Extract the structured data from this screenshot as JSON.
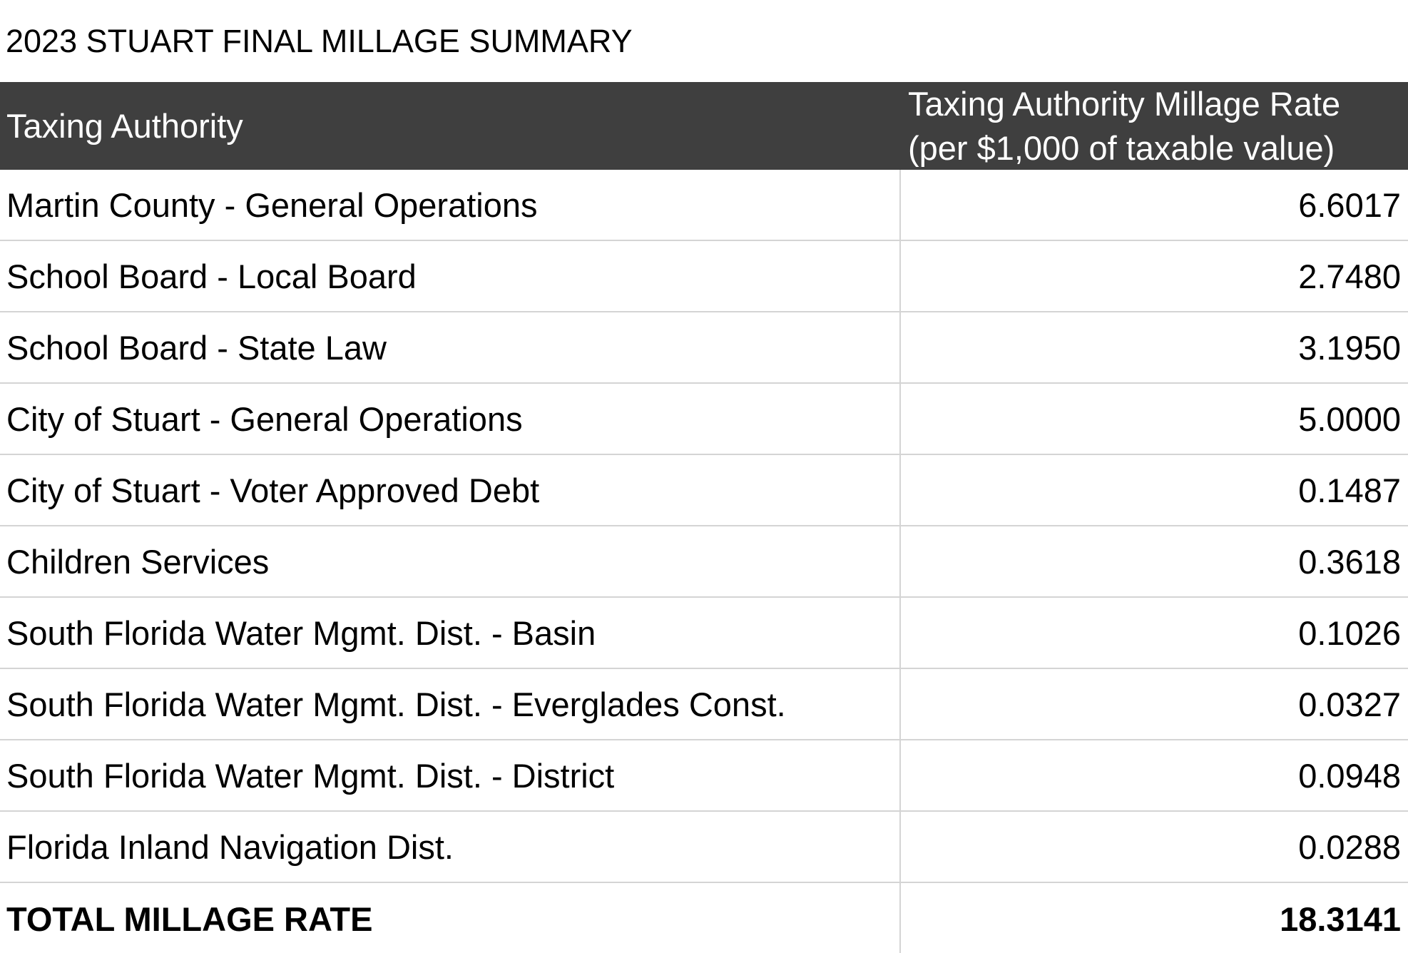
{
  "title": "2023 STUART FINAL MILLAGE SUMMARY",
  "header": {
    "authority": "Taxing Authority",
    "rate_line1": "Taxing Authority Millage Rate",
    "rate_line2": "(per $1,000 of taxable value)"
  },
  "rows": [
    {
      "name": "Martin County - General Operations",
      "rate": "6.6017"
    },
    {
      "name": "School Board - Local Board",
      "rate": "2.7480"
    },
    {
      "name": "School Board - State Law",
      "rate": "3.1950"
    },
    {
      "name": "City of Stuart - General Operations",
      "rate": "5.0000"
    },
    {
      "name": "City of Stuart - Voter Approved Debt",
      "rate": "0.1487"
    },
    {
      "name": "Children Services",
      "rate": "0.3618"
    },
    {
      "name": "South Florida Water Mgmt. Dist. - Basin",
      "rate": "0.1026"
    },
    {
      "name": "South Florida Water Mgmt. Dist. - Everglades Const.",
      "rate": "0.0327"
    },
    {
      "name": "South Florida Water Mgmt. Dist. - District",
      "rate": "0.0948"
    },
    {
      "name": "Florida Inland Navigation Dist.",
      "rate": "0.0288"
    }
  ],
  "total": {
    "label": "TOTAL MILLAGE RATE",
    "rate": "18.3141"
  },
  "colors": {
    "header_bg": "#3f3f3f",
    "header_text": "#ffffff",
    "grid": "#d4d4d4"
  }
}
